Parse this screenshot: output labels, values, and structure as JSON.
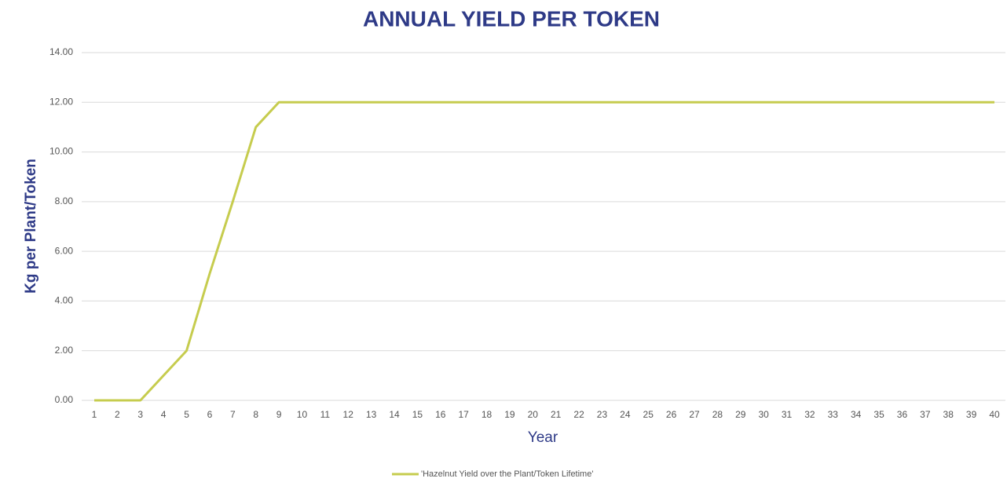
{
  "chart_data": {
    "type": "line",
    "title": "ANNUAL YIELD PER TOKEN",
    "xlabel": "Year",
    "ylabel": "Kg per Plant/Token",
    "x": [
      1,
      2,
      3,
      4,
      5,
      6,
      7,
      8,
      9,
      10,
      11,
      12,
      13,
      14,
      15,
      16,
      17,
      18,
      19,
      20,
      21,
      22,
      23,
      24,
      25,
      26,
      27,
      28,
      29,
      30,
      31,
      32,
      33,
      34,
      35,
      36,
      37,
      38,
      39,
      40
    ],
    "series": [
      {
        "name": "'Hazelnut Yield over the Plant/Token Lifetime'",
        "color": "#c6cc4e",
        "values": [
          0,
          0,
          0,
          1,
          2,
          5.1,
          8,
          11,
          12,
          12,
          12,
          12,
          12,
          12,
          12,
          12,
          12,
          12,
          12,
          12,
          12,
          12,
          12,
          12,
          12,
          12,
          12,
          12,
          12,
          12,
          12,
          12,
          12,
          12,
          12,
          12,
          12,
          12,
          12,
          12
        ]
      }
    ],
    "xlim": [
      1,
      40
    ],
    "xticks": [
      1,
      2,
      3,
      4,
      5,
      6,
      7,
      8,
      9,
      10,
      11,
      12,
      13,
      14,
      15,
      16,
      17,
      18,
      19,
      20,
      21,
      22,
      23,
      24,
      25,
      26,
      27,
      28,
      29,
      30,
      31,
      32,
      33,
      34,
      35,
      36,
      37,
      38,
      39,
      40
    ],
    "ylim": [
      0,
      14
    ],
    "yticks": [
      {
        "value": 0,
        "label": "0.00"
      },
      {
        "value": 2,
        "label": "2.00"
      },
      {
        "value": 4,
        "label": "4.00"
      },
      {
        "value": 6,
        "label": "6.00"
      },
      {
        "value": 8,
        "label": "8.00"
      },
      {
        "value": 10,
        "label": "10.00"
      },
      {
        "value": 12,
        "label": "12.00"
      },
      {
        "value": 14,
        "label": "14.00"
      }
    ],
    "grid": true,
    "legend": "bottom"
  }
}
